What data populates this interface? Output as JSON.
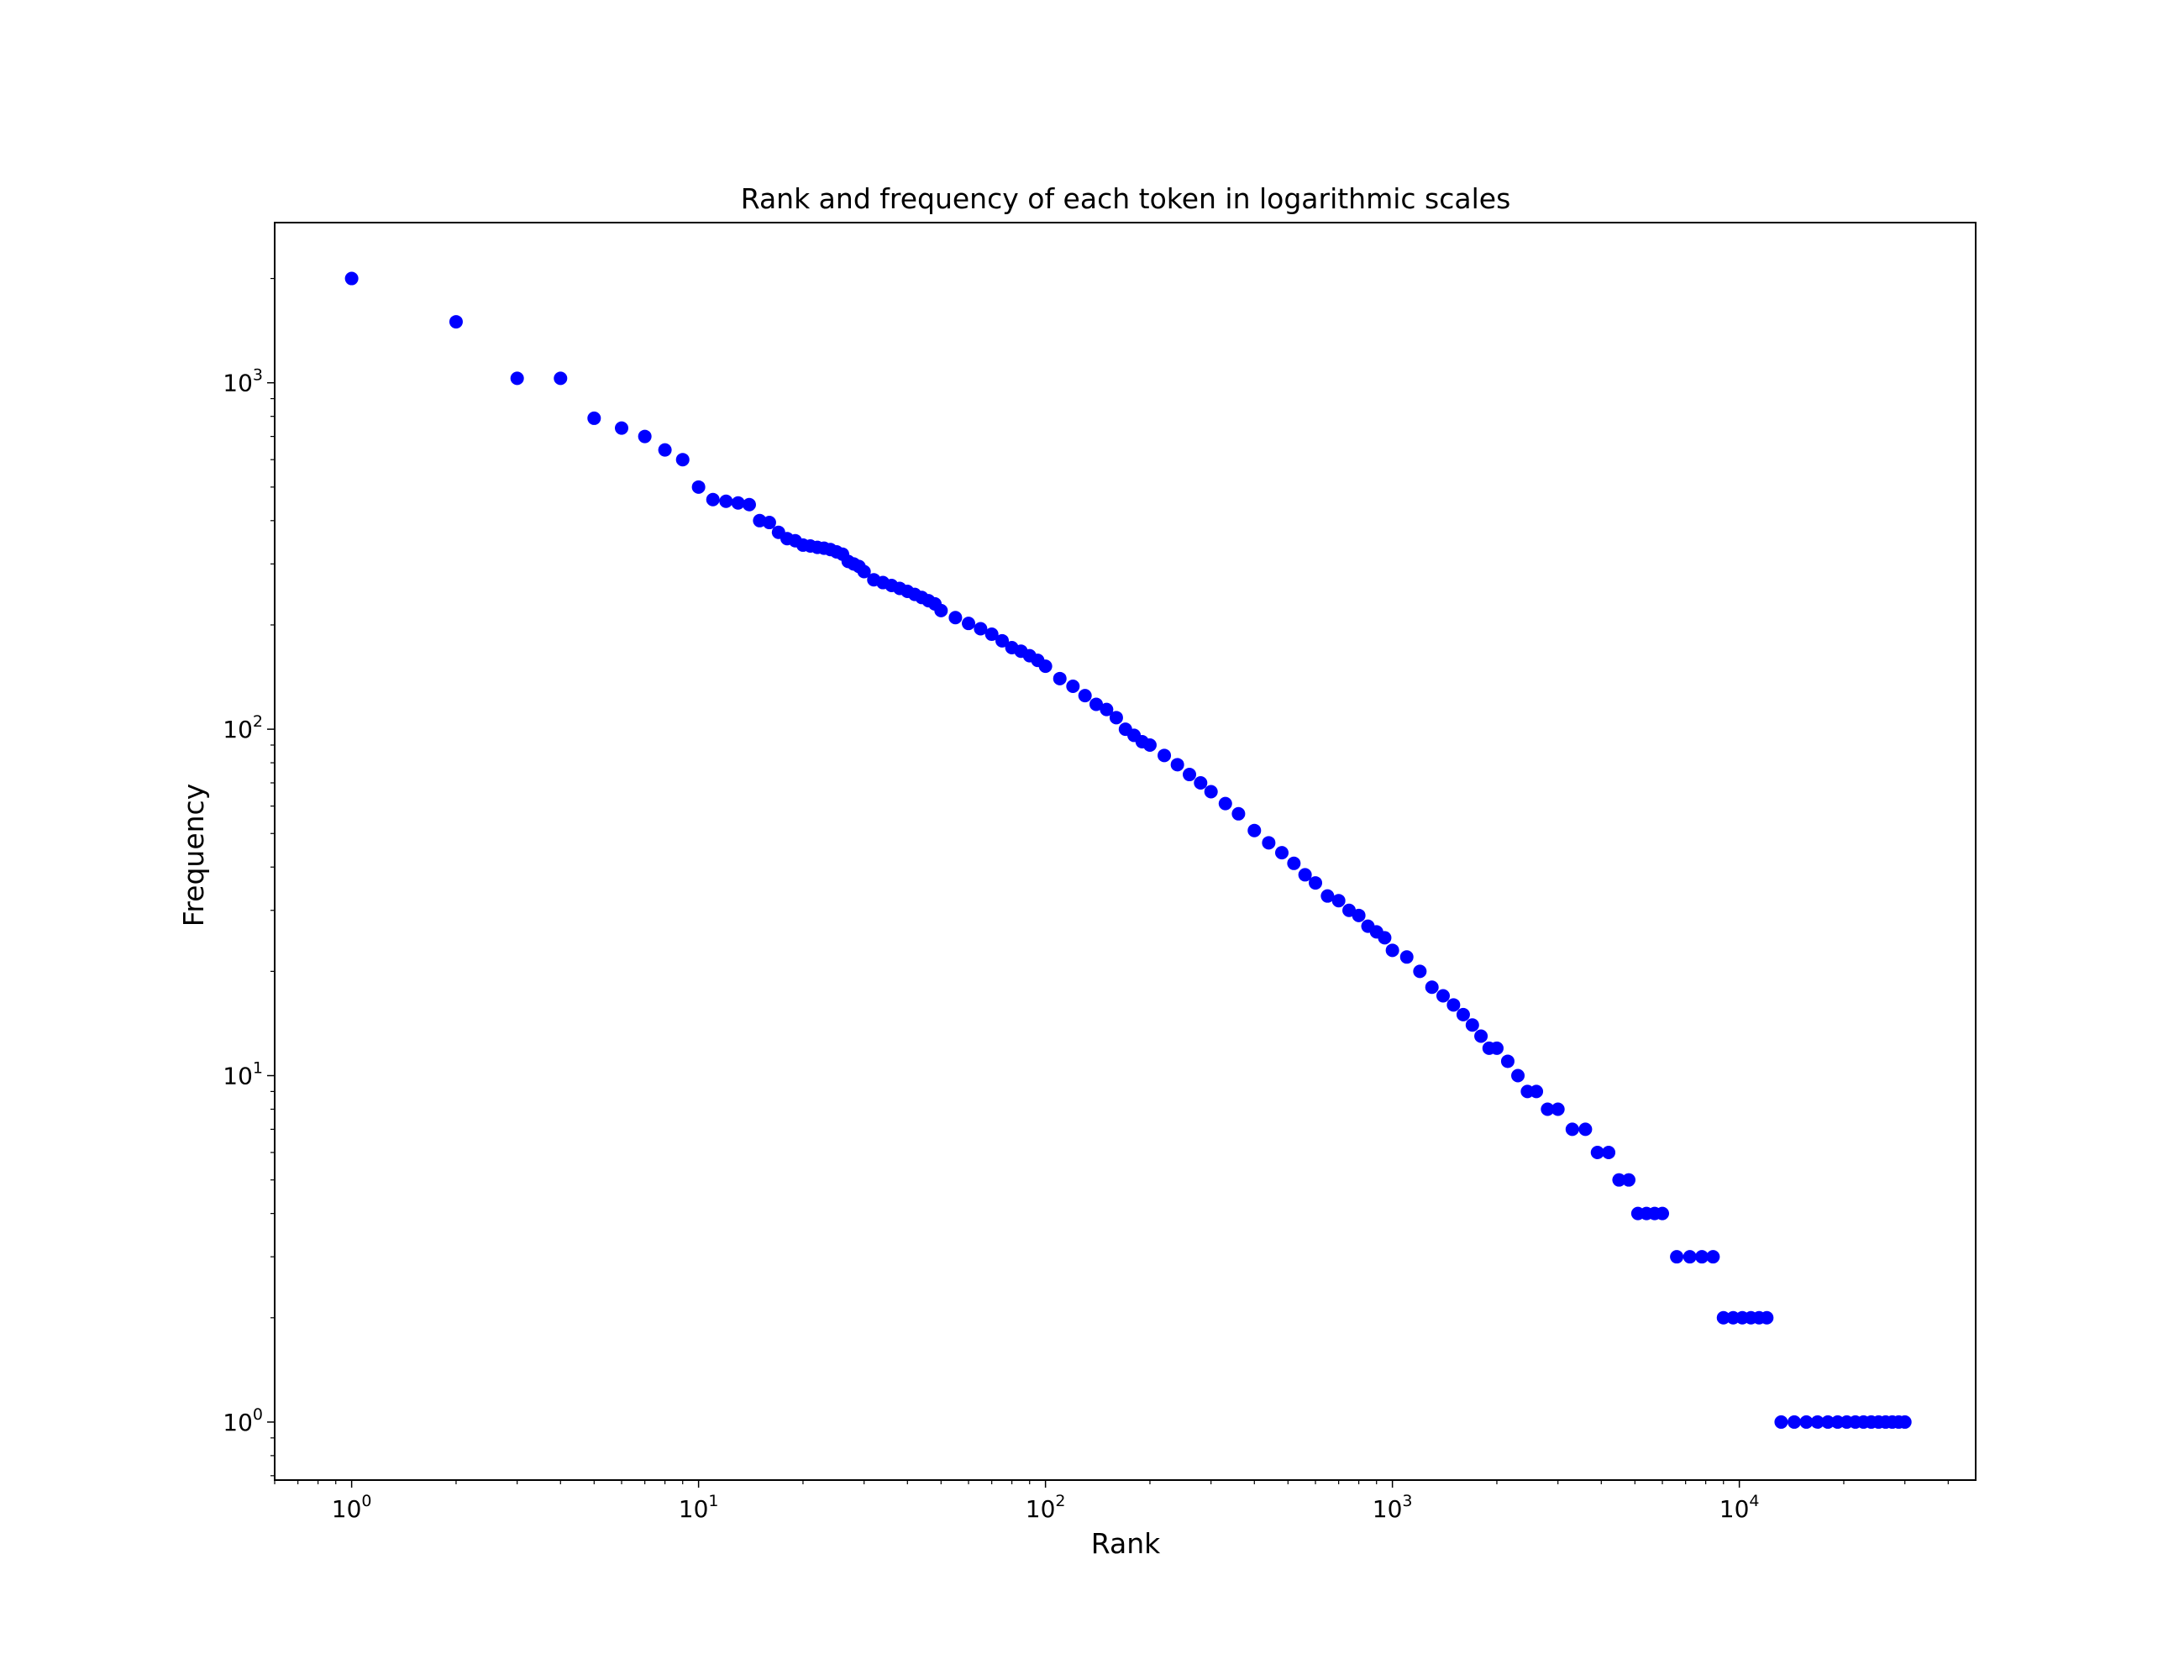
{
  "chart_data": {
    "type": "scatter",
    "title": "Rank and frequency of each token in logarithmic scales",
    "xlabel": "Rank",
    "ylabel": "Frequency",
    "xscale": "log",
    "yscale": "log",
    "xlim": [
      0.6,
      48000
    ],
    "ylim": [
      0.68,
      2900
    ],
    "grid": false,
    "legend": "none",
    "marker_color": "#0000ff",
    "xticks": [
      {
        "base": "10",
        "exp": "0",
        "value": 1
      },
      {
        "base": "10",
        "exp": "1",
        "value": 10
      },
      {
        "base": "10",
        "exp": "2",
        "value": 100
      },
      {
        "base": "10",
        "exp": "3",
        "value": 1000
      },
      {
        "base": "10",
        "exp": "4",
        "value": 10000
      }
    ],
    "yticks": [
      {
        "base": "10",
        "exp": "0",
        "value": 1
      },
      {
        "base": "10",
        "exp": "1",
        "value": 10
      },
      {
        "base": "10",
        "exp": "2",
        "value": 100
      },
      {
        "base": "10",
        "exp": "3",
        "value": 1000
      }
    ],
    "x": [
      1,
      2,
      3,
      4,
      5,
      6,
      7,
      8,
      9,
      10,
      11,
      12,
      13,
      14,
      15,
      16,
      17,
      18,
      19,
      20,
      21,
      22,
      23,
      24,
      25,
      26,
      27,
      28,
      29,
      30,
      32,
      34,
      36,
      38,
      40,
      42,
      44,
      46,
      48,
      50,
      55,
      60,
      65,
      70,
      75,
      80,
      85,
      90,
      95,
      100,
      110,
      120,
      130,
      140,
      150,
      160,
      170,
      180,
      190,
      200,
      220,
      240,
      260,
      280,
      300,
      330,
      360,
      400,
      440,
      480,
      520,
      560,
      600,
      650,
      700,
      750,
      800,
      850,
      900,
      950,
      1000,
      1100,
      1200,
      1300,
      1400,
      1500,
      1600,
      1700,
      1800,
      1900,
      2000,
      2150,
      2300,
      2450,
      2600,
      2800,
      3000,
      3300,
      3600,
      3900,
      4200,
      4500,
      4800,
      5100,
      5400,
      5700,
      6000,
      6600,
      7200,
      7800,
      8400,
      9000,
      9600,
      10200,
      10800,
      11400,
      12000,
      13200,
      14400,
      15600,
      16800,
      18000,
      19200,
      20400,
      21600,
      22800,
      24000,
      25200,
      26400,
      27600,
      28800,
      30000
    ],
    "y": [
      2000,
      1500,
      1030,
      1030,
      790,
      740,
      700,
      640,
      600,
      500,
      460,
      455,
      450,
      445,
      400,
      395,
      370,
      355,
      350,
      340,
      338,
      335,
      333,
      330,
      325,
      320,
      305,
      300,
      295,
      285,
      270,
      265,
      260,
      255,
      250,
      245,
      240,
      235,
      230,
      220,
      210,
      202,
      195,
      188,
      180,
      172,
      168,
      163,
      158,
      152,
      140,
      133,
      125,
      118,
      114,
      108,
      100,
      96,
      92,
      90,
      84,
      79,
      74,
      70,
      66,
      61,
      57,
      51,
      47,
      44,
      41,
      38,
      36,
      33,
      32,
      30,
      29,
      27,
      26,
      25,
      23,
      22,
      20,
      18,
      17,
      16,
      15,
      14,
      13,
      12,
      12,
      11,
      10,
      9,
      9,
      8,
      8,
      7,
      7,
      6,
      6,
      5,
      5,
      4,
      4,
      4,
      4,
      3,
      3,
      3,
      3,
      2,
      2,
      2,
      2,
      2,
      2,
      1,
      1,
      1,
      1,
      1,
      1,
      1,
      1,
      1,
      1,
      1,
      1,
      1,
      1,
      1
    ]
  }
}
